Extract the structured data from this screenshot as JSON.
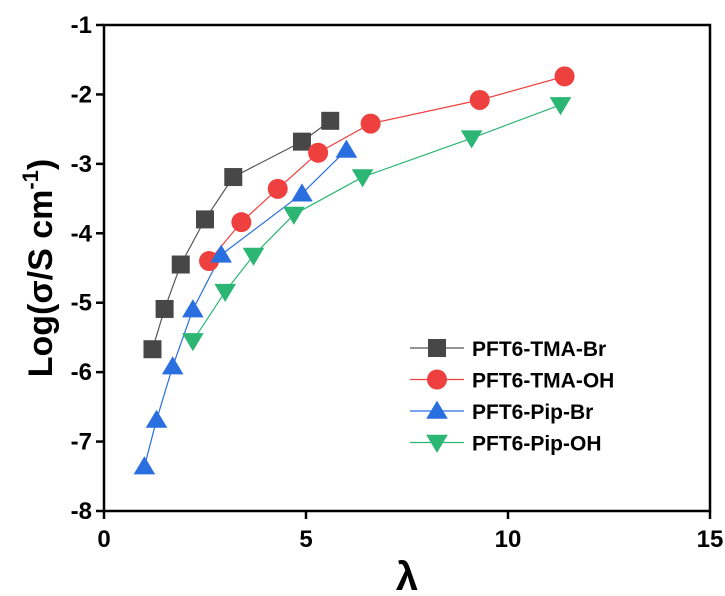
{
  "chart_data": {
    "type": "scatter",
    "title": "",
    "xlabel": "λ",
    "ylabel_main": "Log(σ/S cm",
    "ylabel_sup": "-1",
    "ylabel_close": ")",
    "xlim": [
      0,
      15
    ],
    "ylim": [
      -8,
      -1
    ],
    "xticks": [
      0,
      5,
      10,
      15
    ],
    "yticks": [
      -8,
      -7,
      -6,
      -5,
      -4,
      -3,
      -2,
      -1
    ],
    "grid": false,
    "legend_position": "bottom-right",
    "series": [
      {
        "name": "PFT6-TMA-Br",
        "marker": "square",
        "color": "#474747",
        "line_color": "#555555",
        "x": [
          1.2,
          1.5,
          1.9,
          2.5,
          3.2,
          4.9,
          5.6
        ],
        "y": [
          -5.67,
          -5.09,
          -4.45,
          -3.8,
          -3.19,
          -2.68,
          -2.38
        ]
      },
      {
        "name": "PFT6-TMA-OH",
        "marker": "circle",
        "color": "#ef4040",
        "line_color": "#ef4040",
        "x": [
          2.6,
          3.4,
          4.3,
          5.3,
          6.6,
          9.3,
          11.4
        ],
        "y": [
          -4.4,
          -3.84,
          -3.36,
          -2.84,
          -2.42,
          -2.08,
          -1.74
        ]
      },
      {
        "name": "PFT6-Pip-Br",
        "marker": "triangle-up",
        "color": "#2a6fe0",
        "line_color": "#2a6fe0",
        "x": [
          1.0,
          1.3,
          1.7,
          2.2,
          2.9,
          4.9,
          6.0
        ],
        "y": [
          -7.36,
          -6.69,
          -5.92,
          -5.1,
          -4.31,
          -3.43,
          -2.8
        ]
      },
      {
        "name": "PFT6-Pip-OH",
        "marker": "triangle-down",
        "color": "#2bb673",
        "line_color": "#2bb673",
        "x": [
          2.2,
          3.0,
          3.7,
          4.7,
          6.4,
          9.1,
          11.3
        ],
        "y": [
          -5.55,
          -4.84,
          -4.32,
          -3.73,
          -3.19,
          -2.63,
          -2.15
        ]
      }
    ]
  }
}
